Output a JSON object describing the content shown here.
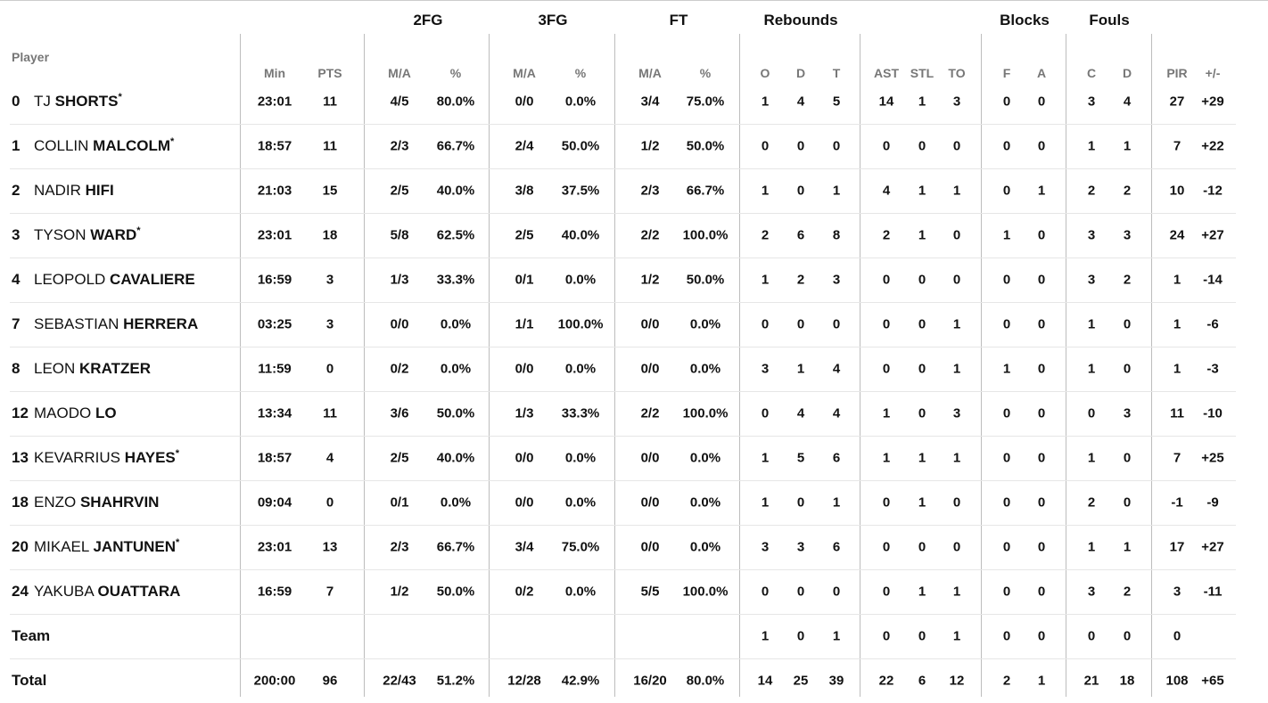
{
  "groups": {
    "fg2": "2FG",
    "fg3": "3FG",
    "ft": "FT",
    "reb": "Rebounds",
    "blk": "Blocks",
    "fouls": "Fouls"
  },
  "sub_headers": {
    "player": "Player",
    "min": "Min",
    "pts": "PTS",
    "ma": "M/A",
    "pct": "%",
    "o": "O",
    "d": "D",
    "t": "T",
    "ast": "AST",
    "stl": "STL",
    "to": "TO",
    "f": "F",
    "a": "A",
    "c": "C",
    "fd": "D",
    "pir": "PIR",
    "pm": "+/-"
  },
  "players": [
    {
      "num": "0",
      "first": "TJ",
      "last": "SHORTS",
      "star": "*",
      "cells": [
        "23:01",
        "11",
        "4/5",
        "80.0%",
        "0/0",
        "0.0%",
        "3/4",
        "75.0%",
        "1",
        "4",
        "5",
        "14",
        "1",
        "3",
        "0",
        "0",
        "3",
        "4",
        "27",
        "+29"
      ]
    },
    {
      "num": "1",
      "first": "COLLIN",
      "last": "MALCOLM",
      "star": "*",
      "cells": [
        "18:57",
        "11",
        "2/3",
        "66.7%",
        "2/4",
        "50.0%",
        "1/2",
        "50.0%",
        "0",
        "0",
        "0",
        "0",
        "0",
        "0",
        "0",
        "0",
        "1",
        "1",
        "7",
        "+22"
      ]
    },
    {
      "num": "2",
      "first": "NADIR",
      "last": "HIFI",
      "star": "",
      "cells": [
        "21:03",
        "15",
        "2/5",
        "40.0%",
        "3/8",
        "37.5%",
        "2/3",
        "66.7%",
        "1",
        "0",
        "1",
        "4",
        "1",
        "1",
        "0",
        "1",
        "2",
        "2",
        "10",
        "-12"
      ]
    },
    {
      "num": "3",
      "first": "TYSON",
      "last": "WARD",
      "star": "*",
      "cells": [
        "23:01",
        "18",
        "5/8",
        "62.5%",
        "2/5",
        "40.0%",
        "2/2",
        "100.0%",
        "2",
        "6",
        "8",
        "2",
        "1",
        "0",
        "1",
        "0",
        "3",
        "3",
        "24",
        "+27"
      ]
    },
    {
      "num": "4",
      "first": "LEOPOLD",
      "last": "CAVALIERE",
      "star": "",
      "cells": [
        "16:59",
        "3",
        "1/3",
        "33.3%",
        "0/1",
        "0.0%",
        "1/2",
        "50.0%",
        "1",
        "2",
        "3",
        "0",
        "0",
        "0",
        "0",
        "0",
        "3",
        "2",
        "1",
        "-14"
      ]
    },
    {
      "num": "7",
      "first": "SEBASTIAN",
      "last": "HERRERA",
      "star": "",
      "cells": [
        "03:25",
        "3",
        "0/0",
        "0.0%",
        "1/1",
        "100.0%",
        "0/0",
        "0.0%",
        "0",
        "0",
        "0",
        "0",
        "0",
        "1",
        "0",
        "0",
        "1",
        "0",
        "1",
        "-6"
      ]
    },
    {
      "num": "8",
      "first": "LEON",
      "last": "KRATZER",
      "star": "",
      "cells": [
        "11:59",
        "0",
        "0/2",
        "0.0%",
        "0/0",
        "0.0%",
        "0/0",
        "0.0%",
        "3",
        "1",
        "4",
        "0",
        "0",
        "1",
        "1",
        "0",
        "1",
        "0",
        "1",
        "-3"
      ]
    },
    {
      "num": "12",
      "first": "MAODO",
      "last": "LO",
      "star": "",
      "cells": [
        "13:34",
        "11",
        "3/6",
        "50.0%",
        "1/3",
        "33.3%",
        "2/2",
        "100.0%",
        "0",
        "4",
        "4",
        "1",
        "0",
        "3",
        "0",
        "0",
        "0",
        "3",
        "11",
        "-10"
      ]
    },
    {
      "num": "13",
      "first": "KEVARRIUS",
      "last": "HAYES",
      "star": "*",
      "cells": [
        "18:57",
        "4",
        "2/5",
        "40.0%",
        "0/0",
        "0.0%",
        "0/0",
        "0.0%",
        "1",
        "5",
        "6",
        "1",
        "1",
        "1",
        "0",
        "0",
        "1",
        "0",
        "7",
        "+25"
      ]
    },
    {
      "num": "18",
      "first": "ENZO",
      "last": "SHAHRVIN",
      "star": "",
      "cells": [
        "09:04",
        "0",
        "0/1",
        "0.0%",
        "0/0",
        "0.0%",
        "0/0",
        "0.0%",
        "1",
        "0",
        "1",
        "0",
        "1",
        "0",
        "0",
        "0",
        "2",
        "0",
        "-1",
        "-9"
      ]
    },
    {
      "num": "20",
      "first": "MIKAEL",
      "last": "JANTUNEN",
      "star": "*",
      "cells": [
        "23:01",
        "13",
        "2/3",
        "66.7%",
        "3/4",
        "75.0%",
        "0/0",
        "0.0%",
        "3",
        "3",
        "6",
        "0",
        "0",
        "0",
        "0",
        "0",
        "1",
        "1",
        "17",
        "+27"
      ]
    },
    {
      "num": "24",
      "first": "YAKUBA",
      "last": "OUATTARA",
      "star": "",
      "cells": [
        "16:59",
        "7",
        "1/2",
        "50.0%",
        "0/2",
        "0.0%",
        "5/5",
        "100.0%",
        "0",
        "0",
        "0",
        "0",
        "1",
        "1",
        "0",
        "0",
        "3",
        "2",
        "3",
        "-11"
      ]
    }
  ],
  "team": {
    "label": "Team",
    "cells": [
      "",
      "",
      "",
      "",
      "",
      "",
      "",
      "",
      "1",
      "0",
      "1",
      "0",
      "0",
      "1",
      "0",
      "0",
      "0",
      "0",
      "0",
      ""
    ]
  },
  "total": {
    "label": "Total",
    "cells": [
      "200:00",
      "96",
      "22/43",
      "51.2%",
      "12/28",
      "42.9%",
      "16/20",
      "80.0%",
      "14",
      "25",
      "39",
      "22",
      "6",
      "12",
      "2",
      "1",
      "21",
      "18",
      "108",
      "+65"
    ]
  }
}
